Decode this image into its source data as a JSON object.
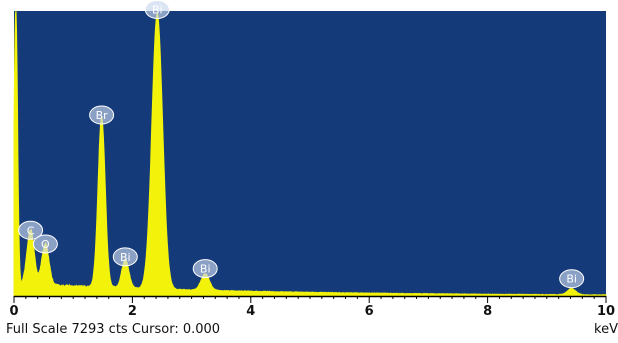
{
  "colors": {
    "plot_background": "#153a7a",
    "spectrum": "#f2f20a",
    "peak_badge": "#c9d7ee",
    "axis": "#000000"
  },
  "status": {
    "full_scale": "Full Scale 7293 cts Cursor: 0.000",
    "unit": "keV"
  },
  "chart_data": {
    "type": "area",
    "title": "",
    "xlabel": "keV",
    "ylabel": "",
    "xlim": [
      0,
      10
    ],
    "ylim": [
      0,
      7293
    ],
    "x_ticks": [
      0,
      2,
      4,
      6,
      8,
      10
    ],
    "x_tick_labels": [
      "0",
      "2",
      "4",
      "6",
      "8",
      "10"
    ],
    "grid": false,
    "spectrum": {
      "background_counts": 330,
      "peaks": [
        {
          "center": 0.03,
          "height": 7293,
          "width": 0.03
        },
        {
          "center": 0.28,
          "height": 1400,
          "width": 0.06
        },
        {
          "center": 0.53,
          "height": 1050,
          "width": 0.06
        },
        {
          "center": 1.48,
          "height": 4350,
          "width": 0.06
        },
        {
          "center": 1.88,
          "height": 720,
          "width": 0.06
        },
        {
          "center": 2.42,
          "height": 7050,
          "width": 0.09
        },
        {
          "center": 3.23,
          "height": 420,
          "width": 0.07
        },
        {
          "center": 9.42,
          "height": 160,
          "width": 0.07
        }
      ]
    },
    "peak_labels": [
      {
        "element": "C",
        "energy": 0.28,
        "counts": 1400
      },
      {
        "element": "O",
        "energy": 0.53,
        "counts": 1050
      },
      {
        "element": "Br",
        "energy": 1.48,
        "counts": 4350
      },
      {
        "element": "Bi",
        "energy": 1.88,
        "counts": 720
      },
      {
        "element": "Bi",
        "energy": 2.42,
        "counts": 7050
      },
      {
        "element": "Bi",
        "energy": 3.23,
        "counts": 420
      },
      {
        "element": "Bi",
        "energy": 9.42,
        "counts": 160
      }
    ]
  }
}
